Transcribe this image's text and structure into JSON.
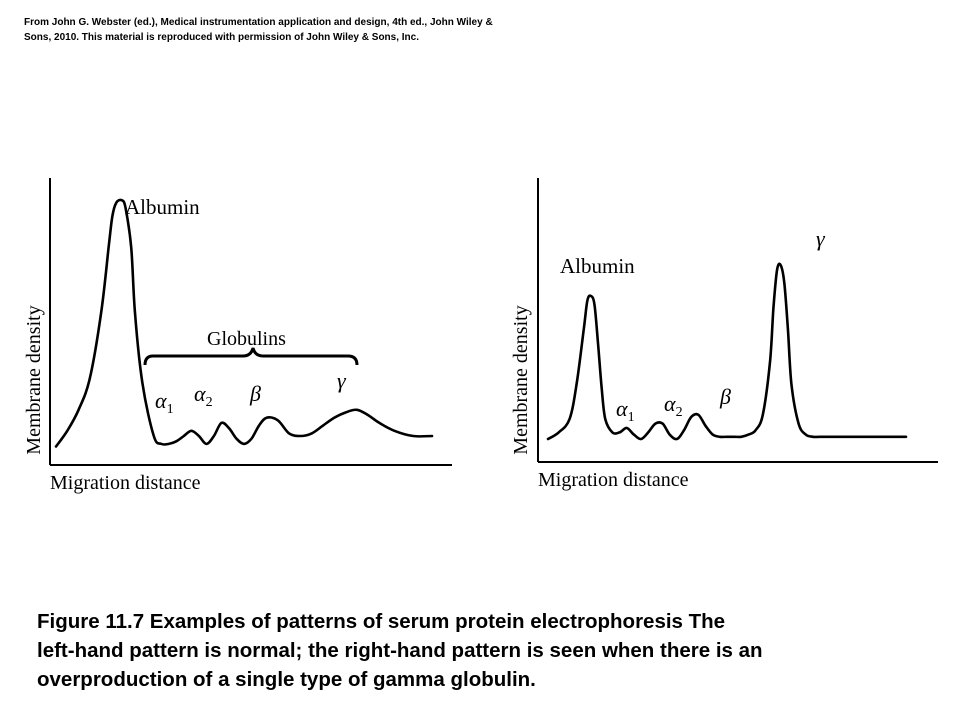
{
  "credit": {
    "line1": "From John G. Webster (ed.), Medical instrumentation application and design, 4th ed., John Wiley &",
    "line2": "Sons, 2010. This material is reproduced with permission of John Wiley & Sons, Inc."
  },
  "caption": {
    "line1": "Figure 11.7    Examples of patterns of serum protein electrophoresis    The",
    "line2": "left-hand pattern is normal; the right-hand pattern is seen when there is an",
    "line3": "overproduction of a single type of gamma globulin."
  },
  "chart_data": [
    {
      "type": "line",
      "panel": "left",
      "title": "",
      "xlabel": "Migration distance",
      "ylabel": "Membrane density",
      "xlim": [
        0,
        100
      ],
      "ylim": [
        0,
        100
      ],
      "grid": false,
      "legend": "none",
      "series": [
        {
          "x": [
            0,
            3,
            6,
            9,
            12,
            14,
            15,
            16,
            17.5,
            18.5,
            20,
            21,
            23,
            26,
            28,
            30,
            32,
            34,
            36,
            38,
            40,
            42,
            44,
            46,
            48,
            50,
            52,
            54,
            56,
            59,
            62,
            65,
            68,
            71,
            74,
            77,
            80,
            83,
            86,
            90,
            95,
            100
          ],
          "y": [
            4,
            10,
            18,
            30,
            55,
            80,
            92,
            97,
            98,
            95,
            80,
            55,
            28,
            8,
            5,
            5,
            6,
            8,
            10,
            8,
            5,
            8,
            13,
            11,
            7,
            5,
            7,
            12,
            15,
            14,
            9,
            8,
            9,
            12,
            15,
            17,
            18,
            16,
            13,
            10,
            8,
            8
          ]
        }
      ],
      "annotations": {
        "albumin": "Albumin",
        "globulins": "Globulins",
        "alpha1_symbol": "α",
        "alpha1_subscript": "1",
        "alpha2_symbol": "α",
        "alpha2_subscript": "2",
        "beta": "β",
        "gamma": "γ"
      }
    },
    {
      "type": "line",
      "panel": "right",
      "title": "",
      "xlabel": "Migration distance",
      "ylabel": "Membrane density",
      "xlim": [
        0,
        100
      ],
      "ylim": [
        0,
        100
      ],
      "grid": false,
      "legend": "none",
      "series": [
        {
          "x": [
            0,
            3,
            6,
            8,
            10,
            11,
            12,
            13,
            14,
            15,
            16,
            18,
            20,
            22,
            24,
            26,
            28,
            30,
            32,
            34,
            36,
            38,
            40,
            42,
            44,
            46,
            48,
            50,
            52,
            54,
            56,
            58,
            60,
            62,
            63,
            64,
            65,
            66,
            67,
            68,
            70,
            72,
            74,
            76,
            80,
            85,
            90,
            95,
            100
          ],
          "y": [
            5,
            8,
            14,
            30,
            55,
            68,
            70,
            66,
            48,
            28,
            14,
            8,
            8,
            10,
            7,
            5,
            8,
            12,
            12,
            7,
            5,
            9,
            15,
            16,
            11,
            7,
            6,
            6,
            6,
            6,
            7,
            9,
            16,
            40,
            65,
            82,
            84,
            76,
            55,
            30,
            12,
            7,
            6,
            6,
            6,
            6,
            6,
            6,
            6
          ]
        }
      ],
      "annotations": {
        "albumin": "Albumin",
        "alpha1_symbol": "α",
        "alpha1_subscript": "1",
        "alpha2_symbol": "α",
        "alpha2_subscript": "2",
        "beta": "β",
        "gamma": "γ"
      }
    }
  ]
}
